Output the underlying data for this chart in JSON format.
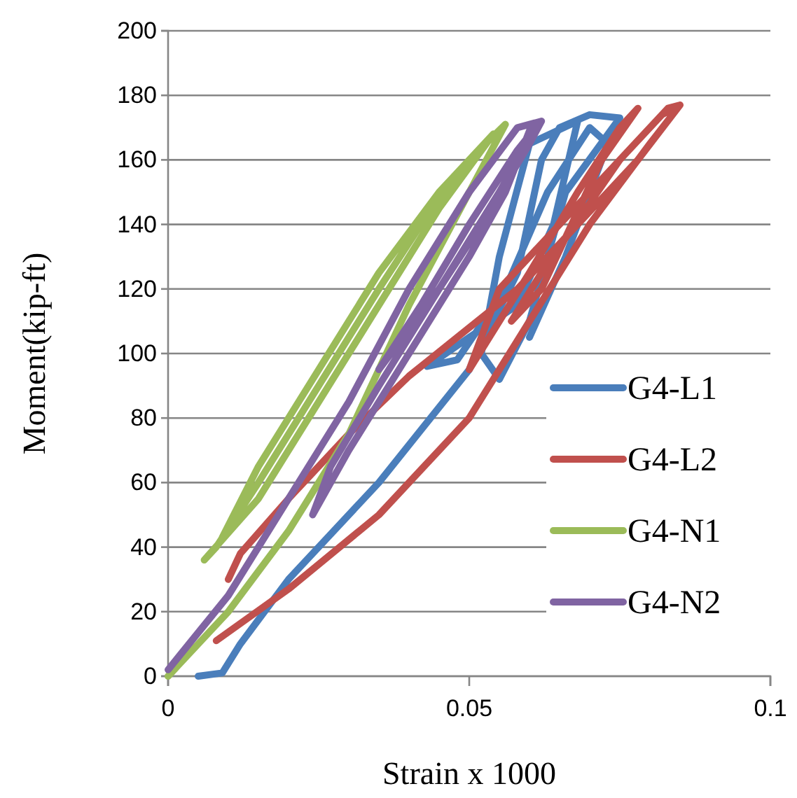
{
  "chart_data": {
    "type": "line",
    "xlabel": "Strain x 1000",
    "ylabel": "Moment(kip-ft)",
    "xlim": [
      0,
      0.1
    ],
    "xticks": [
      0,
      0.05,
      0.1
    ],
    "ylim": [
      0,
      200
    ],
    "yticks": [
      0,
      20,
      40,
      60,
      80,
      100,
      120,
      140,
      160,
      180,
      200
    ],
    "grid": "y",
    "legend": "bottom right",
    "line_style": "solid",
    "marker": "none",
    "series": [
      {
        "name": "G4-L1",
        "color": "#4a7ebb",
        "x": [
          0.005,
          0.009,
          0.012,
          0.02,
          0.035,
          0.05,
          0.058,
          0.062,
          0.065,
          0.07,
          0.075,
          0.066,
          0.06,
          0.055,
          0.052,
          0.055,
          0.06,
          0.068,
          0.064,
          0.058,
          0.05,
          0.043,
          0.048,
          0.056,
          0.063,
          0.07,
          0.073,
          0.066,
          0.06
        ],
        "values": [
          0,
          1,
          10,
          30,
          60,
          95,
          125,
          160,
          170,
          174,
          173,
          150,
          110,
          92,
          100,
          130,
          165,
          172,
          140,
          115,
          105,
          96,
          98,
          120,
          150,
          170,
          165,
          130,
          105
        ]
      },
      {
        "name": "G4-L2",
        "color": "#c0504d",
        "x": [
          0.008,
          0.02,
          0.035,
          0.05,
          0.06,
          0.07,
          0.08,
          0.085,
          0.083,
          0.075,
          0.065,
          0.055,
          0.05,
          0.06,
          0.068,
          0.075,
          0.078,
          0.072,
          0.062,
          0.057,
          0.062,
          0.075,
          0.082,
          0.085,
          0.078,
          0.068,
          0.058,
          0.048,
          0.04,
          0.03,
          0.02,
          0.012,
          0.01
        ],
        "values": [
          11,
          27,
          50,
          80,
          110,
          140,
          165,
          177,
          176,
          160,
          140,
          120,
          95,
          125,
          150,
          170,
          176,
          160,
          120,
          110,
          125,
          160,
          174,
          177,
          160,
          140,
          120,
          105,
          93,
          75,
          55,
          38,
          30
        ]
      },
      {
        "name": "G4-N1",
        "color": "#9bbb59",
        "x": [
          0,
          0.01,
          0.02,
          0.03,
          0.04,
          0.05,
          0.056,
          0.05,
          0.042,
          0.035,
          0.025,
          0.015,
          0.008,
          0.006,
          0.015,
          0.025,
          0.035,
          0.045,
          0.054,
          0.045,
          0.035,
          0.025,
          0.015,
          0.009
        ],
        "values": [
          0,
          20,
          45,
          75,
          115,
          150,
          171,
          160,
          140,
          120,
          90,
          60,
          40,
          36,
          55,
          85,
          115,
          145,
          168,
          150,
          125,
          95,
          65,
          43
        ]
      },
      {
        "name": "G4-N2",
        "color": "#8064a2",
        "x": [
          0,
          0.01,
          0.02,
          0.03,
          0.04,
          0.05,
          0.058,
          0.062,
          0.06,
          0.052,
          0.045,
          0.037,
          0.035,
          0.042,
          0.05,
          0.058,
          0.061,
          0.055,
          0.045,
          0.035,
          0.027,
          0.024,
          0.03,
          0.04,
          0.05,
          0.056,
          0.06
        ],
        "values": [
          2,
          25,
          55,
          85,
          120,
          150,
          170,
          172,
          165,
          140,
          120,
          100,
          95,
          115,
          140,
          163,
          170,
          150,
          120,
          90,
          65,
          50,
          70,
          100,
          130,
          150,
          169
        ]
      }
    ]
  }
}
